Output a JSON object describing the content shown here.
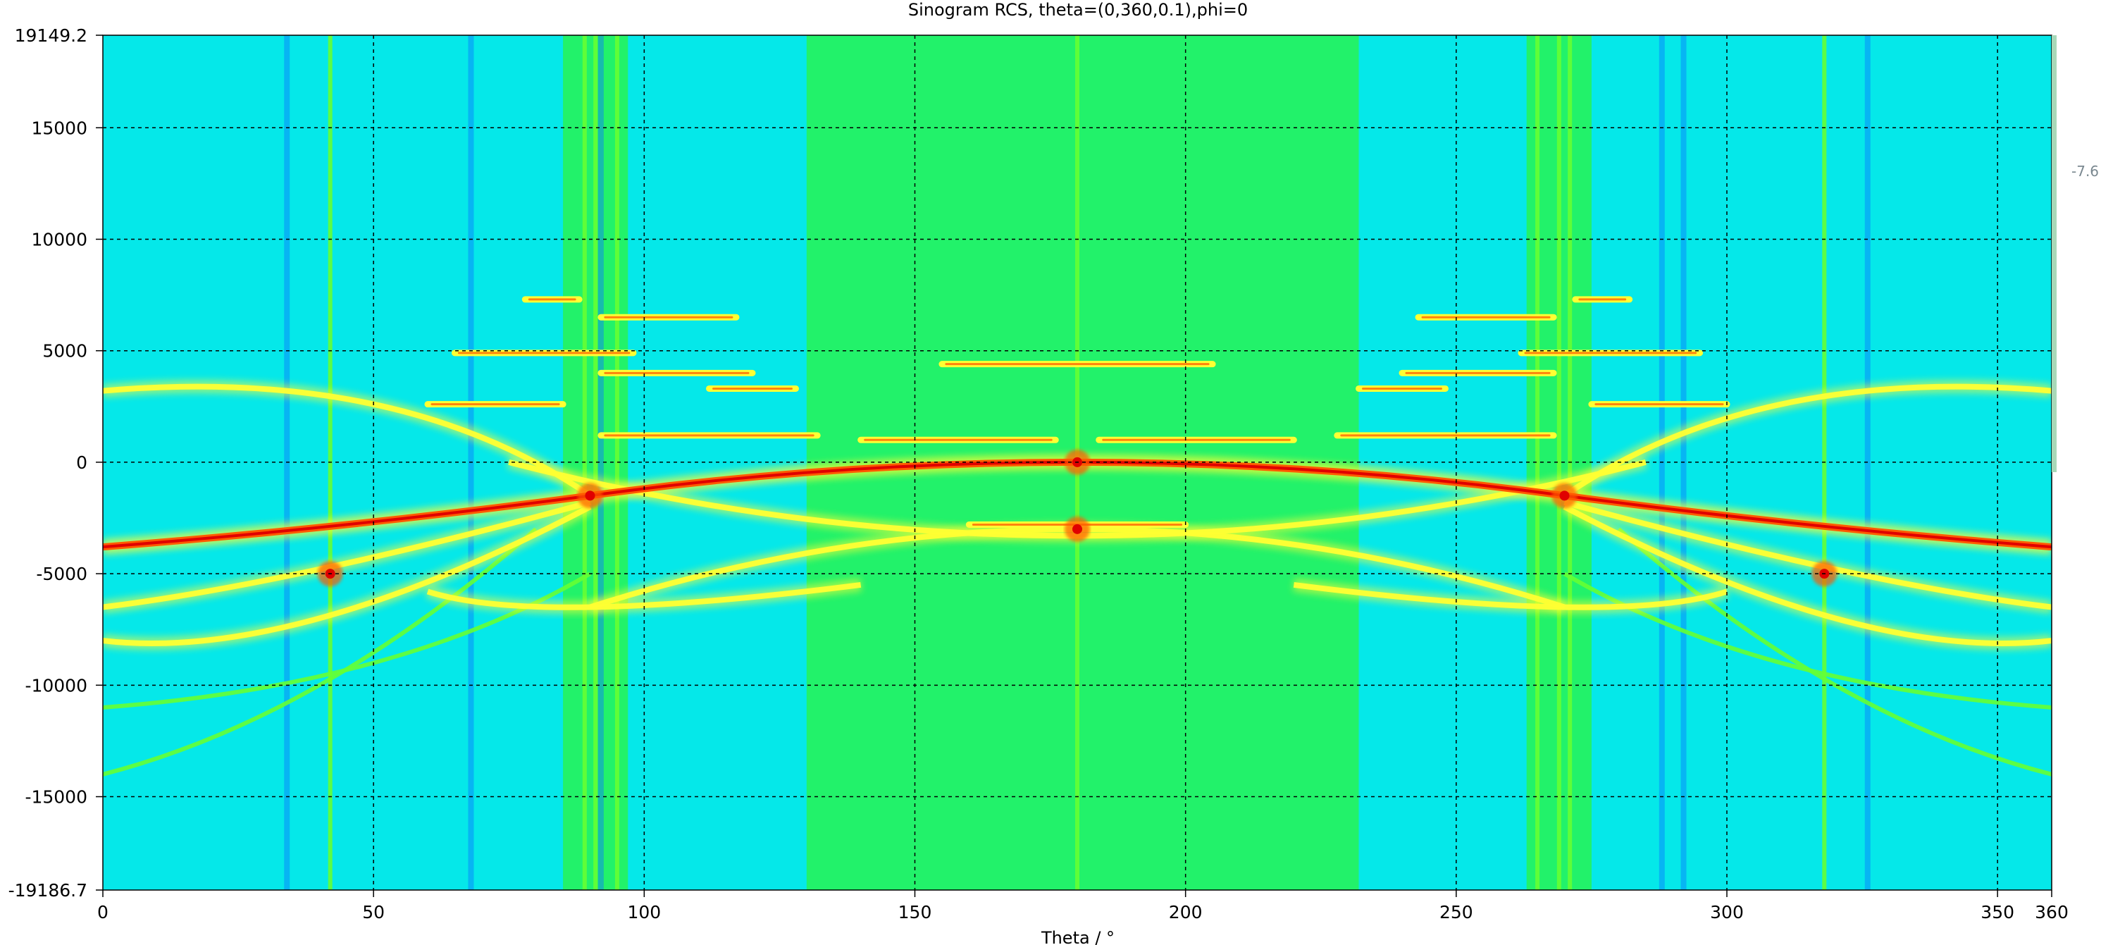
{
  "chart_data": {
    "type": "heatmap",
    "title": "Sinogram RCS, theta=(0,360,0.1),phi=0",
    "xlabel": "Theta / °",
    "ylabel": "",
    "xlim": [
      0,
      360
    ],
    "ylim": [
      -19186.7,
      19149.2
    ],
    "x_ticks": [
      0,
      50,
      100,
      150,
      200,
      250,
      300,
      350,
      360
    ],
    "y_ticks": [
      -19186.7,
      -15000,
      -10000,
      -5000,
      0,
      5000,
      10000,
      15000,
      19149.2
    ],
    "grid": true,
    "colormap": [
      "#0a78ff",
      "#00e6ff",
      "#19ff6e",
      "#66ff33",
      "#ffff33",
      "#ff5a00",
      "#e00000"
    ],
    "colorbar_partial_label": "-7.6",
    "features": {
      "background_level": "green",
      "cyan_bands": [
        [
          0,
          85
        ],
        [
          97,
          130
        ],
        [
          232,
          263
        ],
        [
          275,
          360
        ]
      ],
      "blue_stripes_x": [
        34,
        68,
        92,
        288,
        292,
        326
      ],
      "vertical_green_lines_x": [
        42,
        89,
        91,
        95,
        180,
        265,
        269,
        271,
        318
      ],
      "bright_points": [
        {
          "x": 90,
          "y": -1500
        },
        {
          "x": 270,
          "y": -1500
        },
        {
          "x": 180,
          "y": 0
        },
        {
          "x": 180,
          "y": -3000
        },
        {
          "x": 42,
          "y": -5000
        },
        {
          "x": 318,
          "y": -5000
        }
      ],
      "red_curves": [
        {
          "points": [
            [
              90,
              -1500
            ],
            [
              180,
              0
            ],
            [
              270,
              -1500
            ]
          ]
        },
        {
          "points": [
            [
              0,
              -3800
            ],
            [
              45,
              -2800
            ],
            [
              90,
              -1500
            ]
          ]
        },
        {
          "points": [
            [
              270,
              -1500
            ],
            [
              315,
              -2800
            ],
            [
              360,
              -3800
            ]
          ]
        }
      ],
      "yellow_curves": [
        {
          "points": [
            [
              0,
              3200
            ],
            [
              50,
              2600
            ],
            [
              90,
              -1500
            ]
          ]
        },
        {
          "points": [
            [
              270,
              -1500
            ],
            [
              310,
              2600
            ],
            [
              360,
              3200
            ]
          ]
        },
        {
          "points": [
            [
              0,
              -6500
            ],
            [
              40,
              -4800
            ],
            [
              90,
              -1800
            ]
          ]
        },
        {
          "points": [
            [
              270,
              -1800
            ],
            [
              320,
              -4800
            ],
            [
              360,
              -6500
            ]
          ]
        },
        {
          "points": [
            [
              0,
              -8000
            ],
            [
              40,
              -7000
            ],
            [
              90,
              -2000
            ]
          ]
        },
        {
          "points": [
            [
              270,
              -2000
            ],
            [
              320,
              -7000
            ],
            [
              360,
              -8000
            ]
          ]
        },
        {
          "points": [
            [
              90,
              -6500
            ],
            [
              180,
              -3000
            ],
            [
              270,
              -6500
            ]
          ]
        },
        {
          "points": [
            [
              75,
              0
            ],
            [
              180,
              -3300
            ],
            [
              285,
              0
            ]
          ]
        },
        {
          "points": [
            [
              60,
              -5800
            ],
            [
              90,
              -6500
            ],
            [
              140,
              -5500
            ]
          ]
        },
        {
          "points": [
            [
              220,
              -5500
            ],
            [
              270,
              -6500
            ],
            [
              300,
              -5800
            ]
          ]
        }
      ],
      "faint_green_curves": [
        {
          "points": [
            [
              0,
              -14000
            ],
            [
              40,
              -10000
            ],
            [
              80,
              -3000
            ]
          ]
        },
        {
          "points": [
            [
              280,
              -3000
            ],
            [
              320,
              -10000
            ],
            [
              360,
              -14000
            ]
          ]
        },
        {
          "points": [
            [
              0,
              -11000
            ],
            [
              50,
              -9000
            ],
            [
              90,
              -5000
            ]
          ]
        },
        {
          "points": [
            [
              270,
              -5000
            ],
            [
              310,
              -9000
            ],
            [
              360,
              -11000
            ]
          ]
        }
      ],
      "dash_segments": [
        {
          "x0": 78,
          "x1": 88,
          "y": 7300
        },
        {
          "x0": 92,
          "x1": 117,
          "y": 6500
        },
        {
          "x0": 243,
          "x1": 268,
          "y": 6500
        },
        {
          "x0": 272,
          "x1": 282,
          "y": 7300
        },
        {
          "x0": 65,
          "x1": 98,
          "y": 4900
        },
        {
          "x0": 262,
          "x1": 295,
          "y": 4900
        },
        {
          "x0": 155,
          "x1": 205,
          "y": 4400
        },
        {
          "x0": 92,
          "x1": 120,
          "y": 4000
        },
        {
          "x0": 240,
          "x1": 268,
          "y": 4000
        },
        {
          "x0": 112,
          "x1": 128,
          "y": 3300
        },
        {
          "x0": 232,
          "x1": 248,
          "y": 3300
        },
        {
          "x0": 60,
          "x1": 85,
          "y": 2600
        },
        {
          "x0": 275,
          "x1": 300,
          "y": 2600
        },
        {
          "x0": 92,
          "x1": 132,
          "y": 1200
        },
        {
          "x0": 228,
          "x1": 268,
          "y": 1200
        },
        {
          "x0": 140,
          "x1": 176,
          "y": 1000
        },
        {
          "x0": 184,
          "x1": 220,
          "y": 1000
        },
        {
          "x0": 160,
          "x1": 200,
          "y": -2800
        }
      ]
    }
  }
}
